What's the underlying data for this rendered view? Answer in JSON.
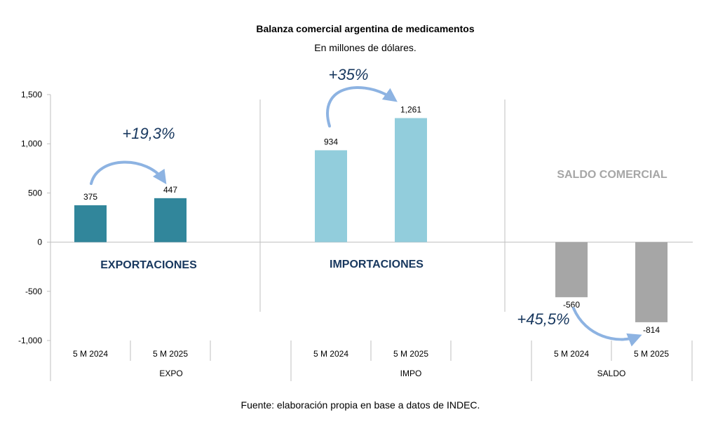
{
  "chart_data": {
    "type": "bar",
    "title": "Balanza comercial argentina de medicamentos",
    "subtitle": "En millones de dólares.",
    "source": "Fuente: elaboración propia en base a datos de INDEC.",
    "ylim": [
      -1000,
      1500
    ],
    "y_ticks": [
      1500,
      1000,
      500,
      0,
      -500,
      -1000
    ],
    "y_tick_labels": [
      "1,500",
      "1,000",
      "500",
      "0",
      "-500",
      "-1,000"
    ],
    "grid": false,
    "groups": [
      {
        "label": "EXPO",
        "section_title": "EXPORTACIONES",
        "categories": [
          "5 M 2024",
          "5 M 2025"
        ],
        "values": [
          375,
          447
        ],
        "value_labels": [
          "375",
          "447"
        ],
        "color": "#31869b",
        "change_label": "+19,3%"
      },
      {
        "label": "IMPO",
        "section_title": "IMPORTACIONES",
        "categories": [
          "5 M 2024",
          "5 M 2025"
        ],
        "values": [
          934,
          1261
        ],
        "value_labels": [
          "934",
          "1,261"
        ],
        "color": "#92cddc",
        "change_label": "+35%"
      },
      {
        "label": "SALDO",
        "section_title": "SALDO COMERCIAL",
        "categories": [
          "5 M 2024",
          "5 M 2025"
        ],
        "values": [
          -560,
          -814
        ],
        "value_labels": [
          "-560",
          "-814"
        ],
        "color": "#a6a6a6",
        "change_label": "+45,5%"
      }
    ],
    "colors": {
      "section_title_dark": "#17375e",
      "section_title_gray": "#a6a6a6",
      "change_label": "#17375e",
      "arrow": "#8db3e2",
      "axis": "#bfbfbf",
      "text": "#000000"
    }
  }
}
